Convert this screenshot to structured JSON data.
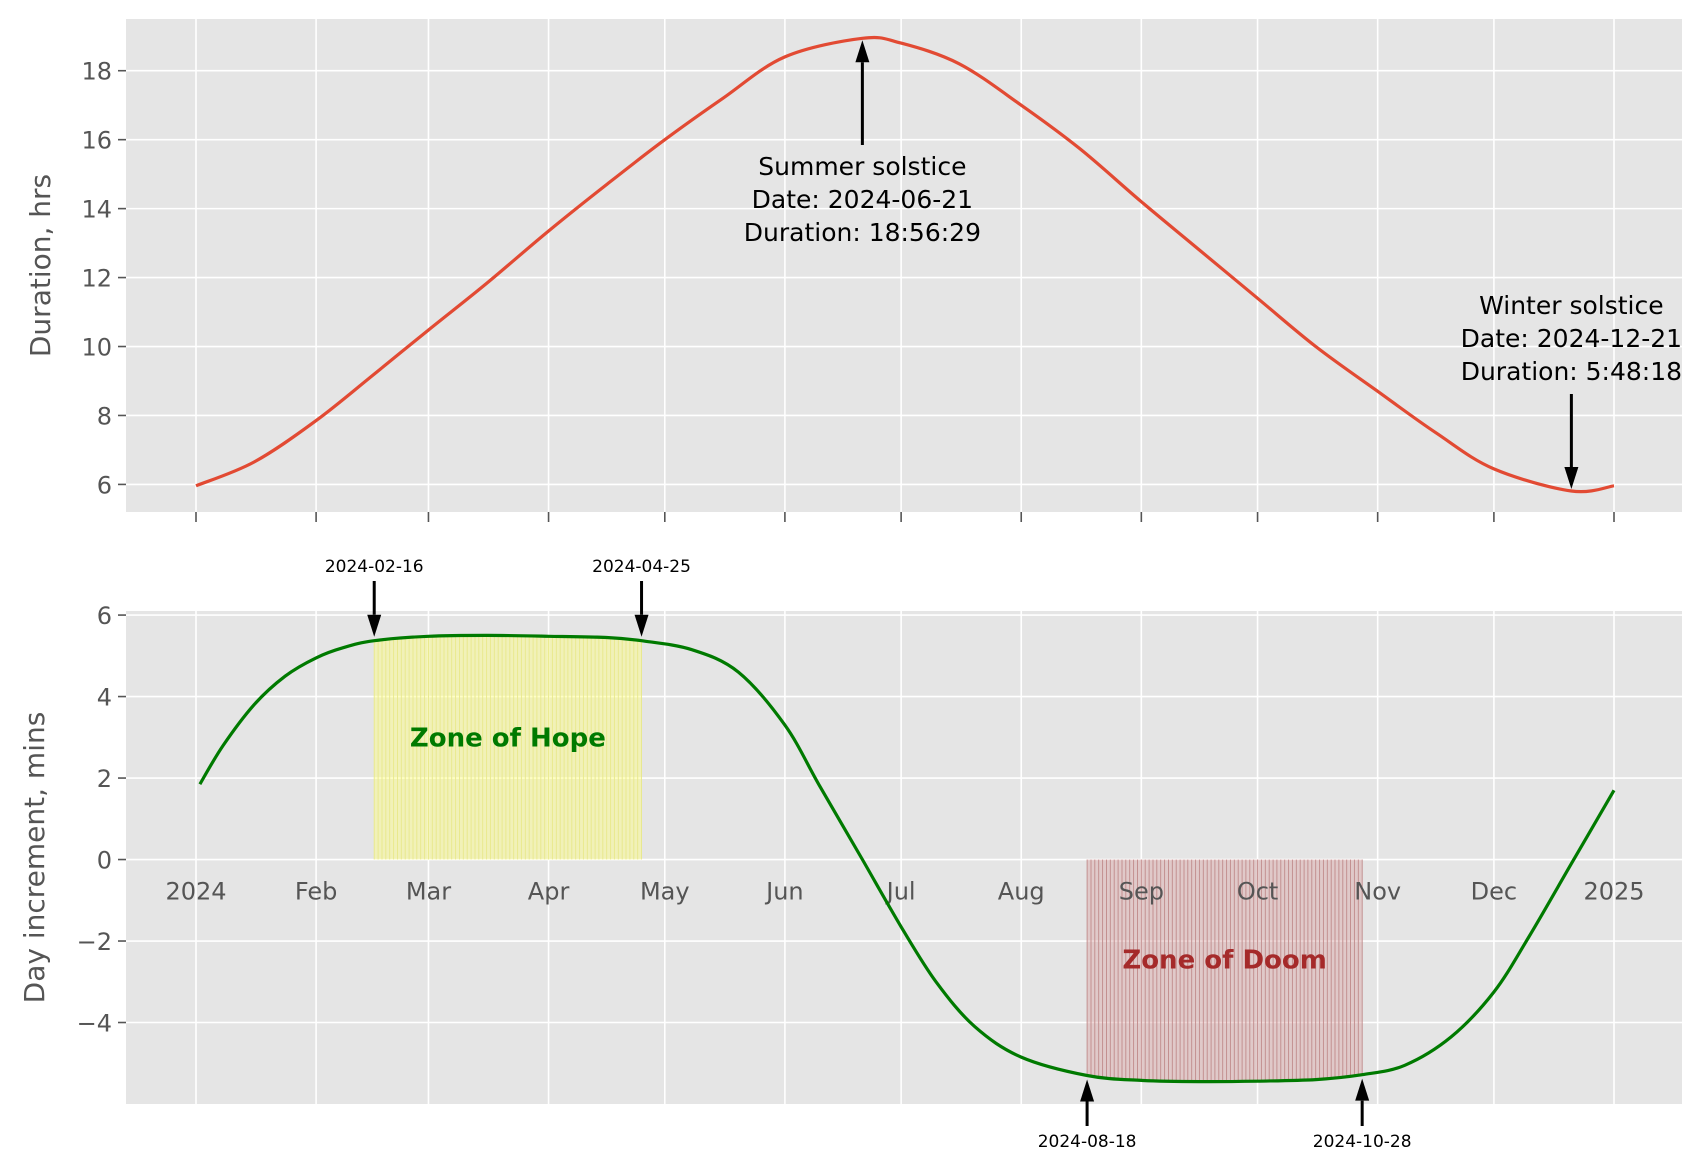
{
  "chart_data": [
    {
      "type": "line",
      "ylabel": "Duration, hrs",
      "x_range": [
        "2024-01-01",
        "2025-01-01"
      ],
      "ylim": [
        5.2,
        19.5
      ],
      "y_ticks": [
        6,
        8,
        10,
        12,
        14,
        16,
        18
      ],
      "grid": true,
      "series": [
        {
          "color": "#e24a33",
          "points": [
            [
              "2024-01-01",
              5.96
            ],
            [
              "2024-01-16",
              6.65
            ],
            [
              "2024-02-01",
              7.85
            ],
            [
              "2024-02-16",
              9.2
            ],
            [
              "2024-03-01",
              10.48
            ],
            [
              "2024-03-16",
              11.83
            ],
            [
              "2024-04-01",
              13.35
            ],
            [
              "2024-04-16",
              14.7
            ],
            [
              "2024-05-01",
              16.0
            ],
            [
              "2024-05-16",
              17.2
            ],
            [
              "2024-06-01",
              18.4
            ],
            [
              "2024-06-21",
              18.94
            ],
            [
              "2024-07-01",
              18.8
            ],
            [
              "2024-07-16",
              18.2
            ],
            [
              "2024-08-01",
              17.0
            ],
            [
              "2024-08-16",
              15.75
            ],
            [
              "2024-09-01",
              14.2
            ],
            [
              "2024-09-16",
              12.8
            ],
            [
              "2024-10-01",
              11.4
            ],
            [
              "2024-10-16",
              10.0
            ],
            [
              "2024-11-01",
              8.7
            ],
            [
              "2024-11-16",
              7.5
            ],
            [
              "2024-12-01",
              6.45
            ],
            [
              "2024-12-21",
              5.81
            ],
            [
              "2025-01-01",
              5.96
            ]
          ]
        }
      ],
      "annotations": [
        {
          "date": "2024-06-21",
          "value": 18.94,
          "lines": [
            "Summer solstice",
            "Date: 2024-06-21",
            "Duration: 18:56:29"
          ]
        },
        {
          "date": "2024-12-21",
          "value": 5.81,
          "lines": [
            "Winter solstice",
            "Date: 2024-12-21",
            "Duration: 5:48:18"
          ]
        }
      ]
    },
    {
      "type": "line",
      "ylabel": "Day increment, mins",
      "x_ticks": [
        "2024",
        "Feb",
        "Mar",
        "Apr",
        "May",
        "Jun",
        "Jul",
        "Aug",
        "Sep",
        "Oct",
        "Nov",
        "Dec",
        "2025"
      ],
      "x_tick_dates": [
        "2024-01-01",
        "2024-02-01",
        "2024-03-01",
        "2024-04-01",
        "2024-05-01",
        "2024-06-01",
        "2024-07-01",
        "2024-08-01",
        "2024-09-01",
        "2024-10-01",
        "2024-11-01",
        "2024-12-01",
        "2025-01-01"
      ],
      "ylim": [
        -6.0,
        6.1
      ],
      "y_ticks": [
        6,
        4,
        2,
        0,
        -2,
        -4
      ],
      "y_tick_labels": [
        "6",
        "4",
        "2",
        "0",
        "−2",
        "−4"
      ],
      "grid": true,
      "series": [
        {
          "color": "#007a00",
          "points": [
            [
              "2024-01-02",
              1.85
            ],
            [
              "2024-01-08",
              2.8
            ],
            [
              "2024-01-16",
              3.8
            ],
            [
              "2024-01-24",
              4.5
            ],
            [
              "2024-02-01",
              4.95
            ],
            [
              "2024-02-08",
              5.2
            ],
            [
              "2024-02-16",
              5.37
            ],
            [
              "2024-03-01",
              5.48
            ],
            [
              "2024-03-16",
              5.5
            ],
            [
              "2024-04-01",
              5.48
            ],
            [
              "2024-04-16",
              5.45
            ],
            [
              "2024-04-25",
              5.37
            ],
            [
              "2024-05-08",
              5.15
            ],
            [
              "2024-05-20",
              4.6
            ],
            [
              "2024-06-01",
              3.3
            ],
            [
              "2024-06-10",
              1.8
            ],
            [
              "2024-06-21",
              0.0
            ],
            [
              "2024-07-01",
              -1.65
            ],
            [
              "2024-07-10",
              -3.0
            ],
            [
              "2024-07-20",
              -4.1
            ],
            [
              "2024-08-01",
              -4.85
            ],
            [
              "2024-08-18",
              -5.3
            ],
            [
              "2024-09-01",
              -5.42
            ],
            [
              "2024-09-16",
              -5.45
            ],
            [
              "2024-10-01",
              -5.44
            ],
            [
              "2024-10-16",
              -5.4
            ],
            [
              "2024-10-28",
              -5.28
            ],
            [
              "2024-11-08",
              -5.05
            ],
            [
              "2024-11-20",
              -4.35
            ],
            [
              "2024-12-01",
              -3.25
            ],
            [
              "2024-12-10",
              -1.9
            ],
            [
              "2024-12-21",
              -0.1
            ],
            [
              "2025-01-01",
              1.7
            ]
          ]
        }
      ],
      "zones": [
        {
          "label": "Zone of Hope",
          "start": "2024-02-16",
          "end": "2024-04-25",
          "fill": "#ffff80",
          "line": "#e8e88a",
          "text_color": "#007a00"
        },
        {
          "label": "Zone of Doom",
          "start": "2024-08-18",
          "end": "2024-10-28",
          "fill": "#d9a6a6",
          "line": "#c08a8a",
          "text_color": "#a52a2a"
        }
      ],
      "date_markers": [
        {
          "date": "2024-02-16",
          "value": 5.37,
          "label": "2024-02-16",
          "side": "above"
        },
        {
          "date": "2024-04-25",
          "value": 5.37,
          "label": "2024-04-25",
          "side": "above"
        },
        {
          "date": "2024-08-18",
          "value": -5.3,
          "label": "2024-08-18",
          "side": "below"
        },
        {
          "date": "2024-10-28",
          "value": -5.28,
          "label": "2024-10-28",
          "side": "below"
        }
      ]
    }
  ],
  "colors": {
    "plot_background": "#e5e5e5",
    "grid": "#ffffff",
    "tick_text": "#555555"
  }
}
